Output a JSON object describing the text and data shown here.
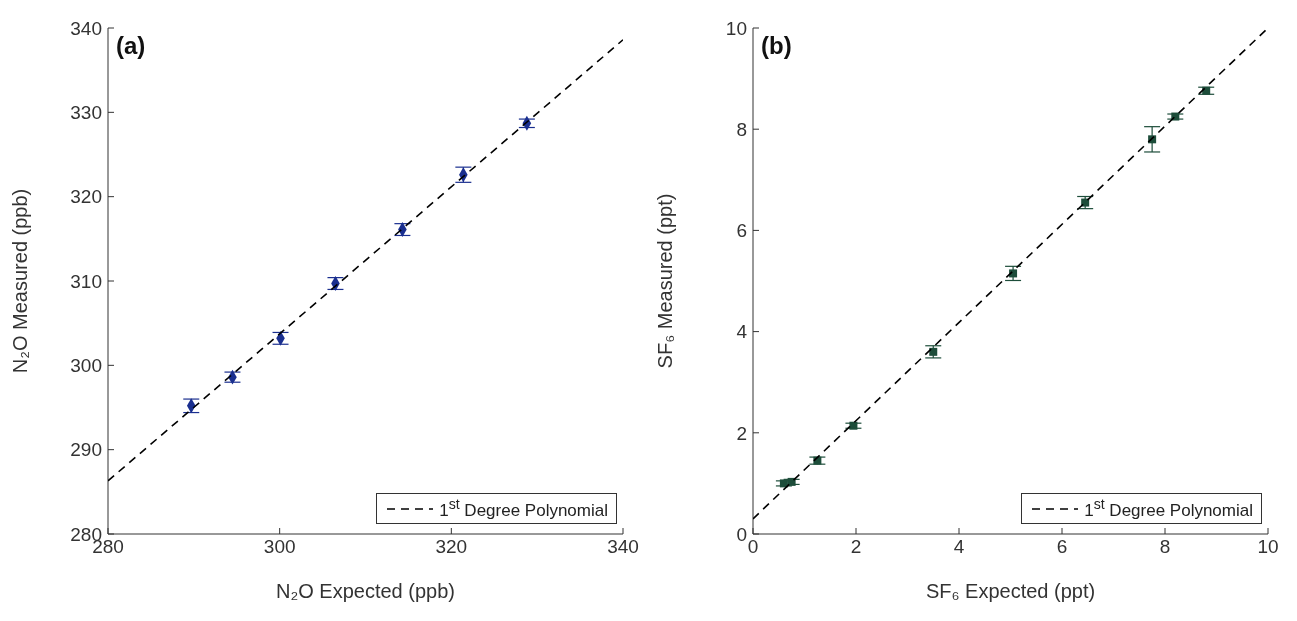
{
  "chart_data": [
    {
      "type": "scatter",
      "annotations": [
        "(a)"
      ],
      "xlabel": "N₂O Expected (ppb)",
      "ylabel": "N₂O Measured (ppb)",
      "xlim": [
        280,
        340
      ],
      "xticks": [
        280,
        300,
        320,
        340
      ],
      "ylim": [
        280,
        340
      ],
      "yticks": [
        280,
        290,
        300,
        310,
        320,
        330,
        340
      ],
      "legend": "bottom right",
      "series": [
        {
          "color": "#1a2f8f",
          "marker": "diamond",
          "x": [
            289.7,
            294.5,
            300.1,
            306.5,
            314.3,
            321.4,
            328.8
          ],
          "values": [
            295.2,
            298.6,
            303.2,
            309.7,
            316.1,
            322.6,
            328.7
          ],
          "errors": [
            0.8,
            0.6,
            0.7,
            0.7,
            0.7,
            0.9,
            0.5
          ]
        },
        {
          "type": "line",
          "name": "1$^{st}$ Degree Polynomial",
          "color": "#000000",
          "line_style": "dashed",
          "x": [
            280,
            340
          ],
          "values": [
            286.3,
            338.6
          ]
        }
      ]
    },
    {
      "type": "scatter",
      "annotations": [
        "(b)"
      ],
      "xlabel": "SF₆ Expected (ppt)",
      "ylabel": "SF₆ Measured (ppt)",
      "xlim": [
        0,
        10
      ],
      "xticks": [
        0,
        2,
        4,
        6,
        8,
        10
      ],
      "ylim": [
        0,
        10
      ],
      "yticks": [
        0,
        2,
        4,
        6,
        8,
        10
      ],
      "legend": "bottom right",
      "series": [
        {
          "color": "#1d4d3a",
          "marker": "square",
          "x": [
            0.6,
            0.75,
            1.25,
            1.95,
            3.5,
            5.05,
            6.45,
            7.75,
            8.2,
            8.8
          ],
          "values": [
            1.0,
            1.03,
            1.45,
            2.14,
            3.6,
            5.15,
            6.55,
            7.8,
            8.25,
            8.76
          ],
          "errors": [
            0.05,
            0.05,
            0.07,
            0.05,
            0.12,
            0.14,
            0.12,
            0.25,
            0.05,
            0.07
          ]
        },
        {
          "type": "line",
          "name": "1$^{st}$ Degree Polynomial",
          "color": "#000000",
          "line_style": "dashed",
          "x": [
            0,
            10
          ],
          "values": [
            0.3,
            10.0
          ]
        }
      ]
    }
  ]
}
